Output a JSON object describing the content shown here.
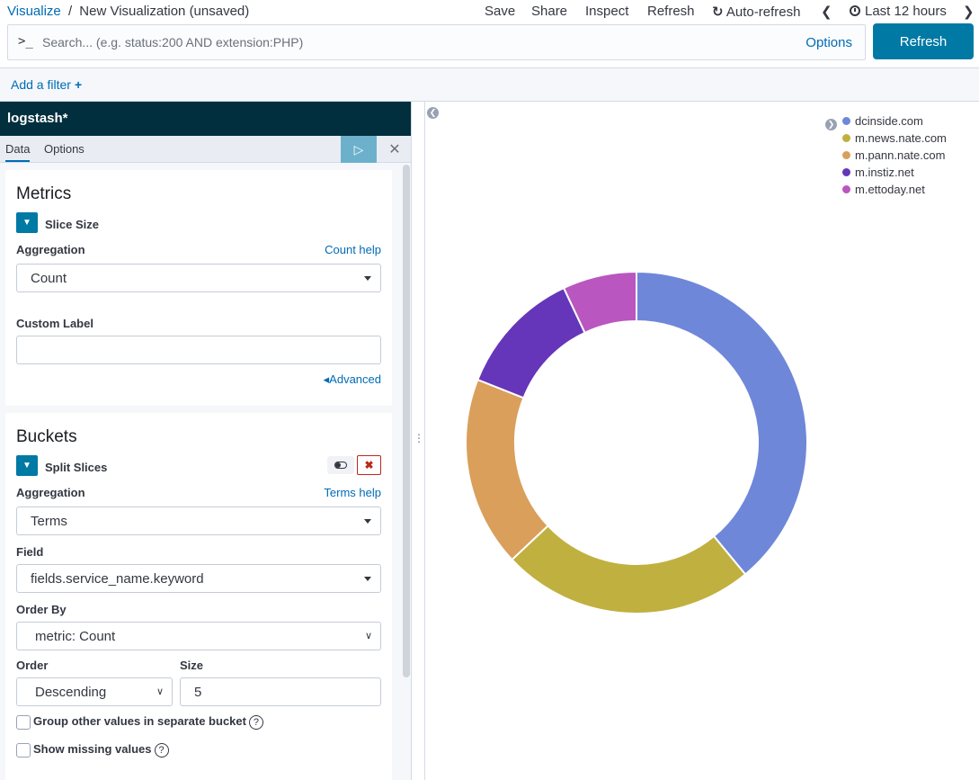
{
  "breadcrumb": {
    "root": "Visualize",
    "separator": "/",
    "current": "New Visualization (unsaved)"
  },
  "top_menu": {
    "save": "Save",
    "share": "Share",
    "inspect": "Inspect",
    "refresh": "Refresh",
    "auto_refresh": "Auto-refresh",
    "time_range": "Last 12 hours",
    "prev_icon": "chevron-left-icon",
    "next_icon": "chevron-right-icon"
  },
  "query": {
    "prompt": ">_",
    "placeholder": "Search... (e.g. status:200 AND extension:PHP)",
    "value": "",
    "options": "Options",
    "refresh_button": "Refresh"
  },
  "filter": {
    "add_filter": "Add a filter",
    "plus": "+"
  },
  "sidebar": {
    "index_pattern": "logstash*",
    "tabs": [
      {
        "label": "Data",
        "active": true
      },
      {
        "label": "Options",
        "active": false
      }
    ],
    "play_icon": "play-icon",
    "close_icon": "close-icon",
    "metrics": {
      "heading": "Metrics",
      "agg_title": "Slice Size",
      "aggregation_label": "Aggregation",
      "aggregation_help": "Count help",
      "aggregation_value": "Count",
      "custom_label_label": "Custom Label",
      "custom_label_value": "",
      "advanced": "Advanced"
    },
    "buckets": {
      "heading": "Buckets",
      "agg_title": "Split Slices",
      "aggregation_label": "Aggregation",
      "aggregation_help": "Terms help",
      "aggregation_value": "Terms",
      "field_label": "Field",
      "field_value": "fields.service_name.keyword",
      "order_by_label": "Order By",
      "order_by_value": "metric: Count",
      "order_label": "Order",
      "order_value": "Descending",
      "size_label": "Size",
      "size_value": "5",
      "group_other_label": "Group other values in separate bucket",
      "group_other_checked": false,
      "show_missing_label": "Show missing values",
      "show_missing_checked": false,
      "help_glyph": "?"
    }
  },
  "chart_data": {
    "type": "pie",
    "donut": true,
    "legend_position": "top-right",
    "series": [
      {
        "name": "dcinside.com",
        "value": 39,
        "color": "#6f87d8"
      },
      {
        "name": "m.news.nate.com",
        "value": 24,
        "color": "#c0b03f"
      },
      {
        "name": "m.pann.nate.com",
        "value": 18,
        "color": "#da9f5b"
      },
      {
        "name": "m.instiz.net",
        "value": 12,
        "color": "#6536b9"
      },
      {
        "name": "m.ettoday.net",
        "value": 7,
        "color": "#b956c0"
      }
    ]
  }
}
